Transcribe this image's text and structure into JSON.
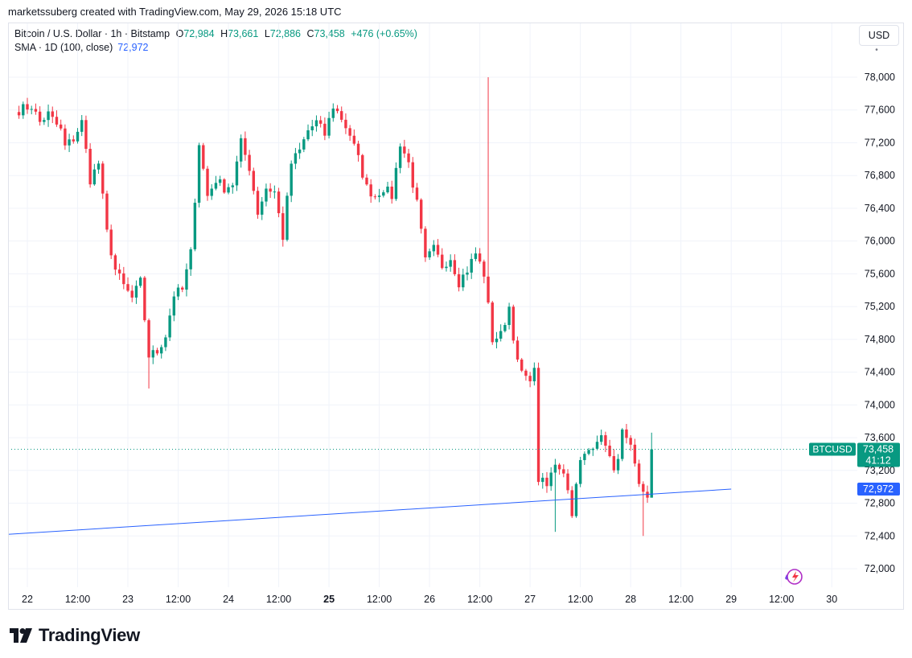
{
  "header": {
    "created_by": "marketssuberg created with TradingView.com, May 29, 2026 15:18 UTC"
  },
  "legend": {
    "symbol": "Bitcoin / U.S. Dollar · 1h · Bitstamp",
    "o_label": "O",
    "o_value": "72,984",
    "h_label": "H",
    "h_value": "73,661",
    "l_label": "L",
    "l_value": "72,886",
    "c_label": "C",
    "c_value": "73,458",
    "change": "+476 (+0.65%)",
    "sma_label": "SMA · 1D (100, close)",
    "sma_value": "72,972"
  },
  "currency_button": "USD",
  "logo_text": "TradingView",
  "colors": {
    "up": "#089981",
    "down": "#f23645",
    "sma": "#2962ff",
    "grid": "#f0f3fa",
    "text": "#131722"
  },
  "chart_data": {
    "type": "candlestick",
    "symbol": "BTCUSD",
    "interval": "1h",
    "ylim": [
      71900,
      78350
    ],
    "y_ticks": [
      72000,
      72400,
      72800,
      73200,
      73600,
      74000,
      74400,
      74800,
      75200,
      75600,
      76000,
      76400,
      76800,
      77200,
      77600,
      78000
    ],
    "y_tick_labels": [
      "72,000",
      "72,400",
      "72,800",
      "73,200",
      "73,600",
      "74,000",
      "74,400",
      "74,800",
      "75,200",
      "75,600",
      "76,000",
      "76,400",
      "76,800",
      "77,200",
      "77,600",
      "78,000"
    ],
    "x_ticks": [
      {
        "label": "22",
        "pos": 0,
        "bold": false
      },
      {
        "label": "12:00",
        "pos": 12,
        "bold": false
      },
      {
        "label": "23",
        "pos": 24,
        "bold": false
      },
      {
        "label": "12:00",
        "pos": 36,
        "bold": false
      },
      {
        "label": "24",
        "pos": 48,
        "bold": false
      },
      {
        "label": "12:00",
        "pos": 60,
        "bold": false
      },
      {
        "label": "25",
        "pos": 72,
        "bold": true
      },
      {
        "label": "12:00",
        "pos": 84,
        "bold": false
      },
      {
        "label": "26",
        "pos": 96,
        "bold": false
      },
      {
        "label": "12:00",
        "pos": 108,
        "bold": false
      },
      {
        "label": "27",
        "pos": 120,
        "bold": false
      },
      {
        "label": "12:00",
        "pos": 132,
        "bold": false
      },
      {
        "label": "28",
        "pos": 144,
        "bold": false
      },
      {
        "label": "12:00",
        "pos": 156,
        "bold": false
      },
      {
        "label": "29",
        "pos": 168,
        "bold": false
      },
      {
        "label": "12:00",
        "pos": 180,
        "bold": false
      },
      {
        "label": "30",
        "pos": 192,
        "bold": false
      }
    ],
    "anchors": [
      [
        -2,
        77600
      ],
      [
        1,
        77650
      ],
      [
        3,
        77450
      ],
      [
        5,
        77550
      ],
      [
        8,
        77350
      ],
      [
        9,
        77150
      ],
      [
        11,
        77250
      ],
      [
        13,
        77450
      ],
      [
        15,
        76750
      ],
      [
        17,
        76950
      ],
      [
        19,
        76100
      ],
      [
        21,
        75650
      ],
      [
        23,
        75450
      ],
      [
        25,
        75300
      ],
      [
        27,
        75500
      ],
      [
        29,
        74600
      ],
      [
        31,
        74650
      ],
      [
        33,
        74850
      ],
      [
        35,
        75350
      ],
      [
        37,
        75400
      ],
      [
        39,
        75850
      ],
      [
        41,
        77200
      ],
      [
        43,
        76550
      ],
      [
        45,
        76750
      ],
      [
        47,
        76650
      ],
      [
        49,
        76700
      ],
      [
        51,
        77200
      ],
      [
        53,
        76900
      ],
      [
        55,
        76350
      ],
      [
        57,
        76650
      ],
      [
        59,
        76600
      ],
      [
        61,
        76050
      ],
      [
        63,
        76950
      ],
      [
        65,
        77100
      ],
      [
        67,
        77350
      ],
      [
        69,
        77450
      ],
      [
        71,
        77300
      ],
      [
        73,
        77650
      ],
      [
        75,
        77500
      ],
      [
        77,
        77300
      ],
      [
        79,
        77000
      ],
      [
        81,
        76650
      ],
      [
        83,
        76550
      ],
      [
        85,
        76650
      ],
      [
        87,
        76550
      ],
      [
        89,
        77200
      ],
      [
        91,
        76950
      ],
      [
        93,
        76450
      ],
      [
        95,
        75750
      ],
      [
        97,
        75900
      ],
      [
        99,
        75700
      ],
      [
        101,
        75800
      ],
      [
        103,
        75500
      ],
      [
        105,
        75650
      ],
      [
        107,
        75850
      ],
      [
        109,
        75600
      ],
      [
        111,
        74800
      ],
      [
        113,
        74850
      ],
      [
        115,
        75200
      ],
      [
        117,
        74500
      ],
      [
        119,
        74300
      ],
      [
        121,
        74400
      ],
      [
        122,
        73100
      ],
      [
        124,
        73000
      ],
      [
        126,
        73300
      ],
      [
        128,
        73200
      ],
      [
        130,
        72700
      ],
      [
        132,
        73300
      ],
      [
        134,
        73450
      ],
      [
        136,
        73600
      ],
      [
        138,
        73550
      ],
      [
        140,
        73150
      ],
      [
        142,
        73650
      ],
      [
        144,
        73450
      ],
      [
        146,
        73000
      ],
      [
        148,
        72900
      ],
      [
        149,
        73460
      ]
    ],
    "last_price": 73458,
    "last_label": "BTCUSD",
    "last_price_label": "73,458",
    "countdown": "41:12",
    "sma": {
      "start": 72420,
      "end": 72972,
      "label": "72,972"
    }
  }
}
